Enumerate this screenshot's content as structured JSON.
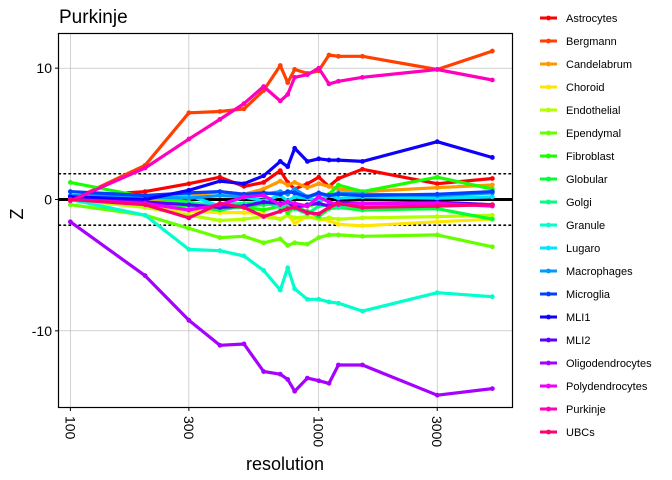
{
  "chart_data": {
    "type": "line",
    "title": "Purkinje",
    "xlabel": "resolution",
    "ylabel": "Z",
    "x_scale": "log",
    "xlim": [
      90,
      6000
    ],
    "ylim": [
      -15.8,
      12.6
    ],
    "x_ticks": [
      {
        "value": 100,
        "label": "100"
      },
      {
        "value": 300,
        "label": "300"
      },
      {
        "value": 1000,
        "label": "1000"
      },
      {
        "value": 3000,
        "label": "3000"
      }
    ],
    "y_ticks": [
      {
        "value": -10,
        "label": "-10"
      },
      {
        "value": 0,
        "label": "0"
      },
      {
        "value": 10,
        "label": "10"
      }
    ],
    "reference_lines": [
      {
        "y": 0,
        "style": "solid"
      },
      {
        "y": 1.96,
        "style": "dotted"
      },
      {
        "y": -1.96,
        "style": "dotted"
      }
    ],
    "grid": true,
    "legend_position": "right",
    "x": [
      100,
      200,
      300,
      400,
      500,
      600,
      700,
      750,
      800,
      900,
      1000,
      1100,
      1200,
      1500,
      3000,
      5000
    ],
    "series": [
      {
        "name": "Astrocytes",
        "color": "#FF0000",
        "values": [
          0.2,
          0.6,
          1.2,
          1.7,
          1.0,
          1.3,
          2.2,
          1.3,
          0.8,
          1.2,
          1.7,
          1.0,
          1.6,
          2.3,
          1.2,
          1.6
        ]
      },
      {
        "name": "Bergmann",
        "color": "#FF4000",
        "values": [
          -0.1,
          2.6,
          6.6,
          6.7,
          6.9,
          8.3,
          10.2,
          8.9,
          9.9,
          9.6,
          9.8,
          11.0,
          10.9,
          10.9,
          9.9,
          11.3
        ]
      },
      {
        "name": "Candelabrum",
        "color": "#FF9900",
        "values": [
          0.0,
          -0.2,
          0.3,
          0.6,
          0.4,
          0.8,
          1.4,
          1.1,
          1.3,
          0.9,
          1.2,
          1.0,
          0.8,
          0.6,
          0.9,
          1.1
        ]
      },
      {
        "name": "Choroid",
        "color": "#FFE500",
        "values": [
          0.0,
          -0.5,
          -0.9,
          -1.0,
          -1.0,
          -1.1,
          -1.5,
          -1.2,
          -1.8,
          -1.3,
          -1.5,
          -1.6,
          -1.9,
          -2.0,
          -1.7,
          -1.5
        ]
      },
      {
        "name": "Endothelial",
        "color": "#B3FF00",
        "values": [
          0.0,
          -0.6,
          -1.2,
          -1.6,
          -1.5,
          -1.3,
          -1.5,
          -1.2,
          -1.4,
          -1.3,
          -1.5,
          -1.4,
          -1.5,
          -1.4,
          -1.3,
          -1.2
        ]
      },
      {
        "name": "Ependymal",
        "color": "#66FF00",
        "values": [
          -0.4,
          -1.2,
          -2.2,
          -2.9,
          -2.8,
          -3.3,
          -3.0,
          -3.5,
          -3.3,
          -3.4,
          -2.9,
          -2.7,
          -2.7,
          -2.8,
          -2.7,
          -3.6
        ]
      },
      {
        "name": "Fibroblast",
        "color": "#1AFF00",
        "values": [
          1.3,
          0.2,
          -0.2,
          -0.6,
          -0.6,
          -0.8,
          -0.5,
          -1.0,
          -0.6,
          -0.5,
          -0.3,
          0.4,
          1.1,
          0.6,
          1.7,
          0.8
        ]
      },
      {
        "name": "Globular",
        "color": "#00FF33",
        "values": [
          0.0,
          -0.3,
          -0.5,
          -0.8,
          -0.5,
          -0.4,
          -0.3,
          -0.8,
          -0.6,
          -0.9,
          -1.3,
          -0.7,
          -0.6,
          -0.8,
          -0.7,
          -1.5
        ]
      },
      {
        "name": "Golgi",
        "color": "#00FF80",
        "values": [
          0.0,
          -0.2,
          -0.3,
          -0.4,
          -0.3,
          -0.2,
          -0.6,
          -0.4,
          -0.7,
          -1.1,
          -0.5,
          -0.4,
          -0.6,
          -0.4,
          -0.3,
          -0.4
        ]
      },
      {
        "name": "Granule",
        "color": "#00FFCC",
        "values": [
          0.0,
          -1.2,
          -3.8,
          -3.9,
          -4.3,
          -5.4,
          -6.9,
          -5.2,
          -6.8,
          -7.6,
          -7.6,
          -7.8,
          -7.9,
          -8.5,
          -7.1,
          -7.4
        ]
      },
      {
        "name": "Lugaro",
        "color": "#00E5FF",
        "values": [
          0.0,
          0.3,
          0.3,
          -0.5,
          0.2,
          -0.1,
          0.3,
          -0.1,
          0.2,
          0.1,
          -0.1,
          0.3,
          0.1,
          0.2,
          0.1,
          0.2
        ]
      },
      {
        "name": "Macrophages",
        "color": "#0099FF",
        "values": [
          0.3,
          0.2,
          0.1,
          0.3,
          0.2,
          0.4,
          0.6,
          0.4,
          0.8,
          0.2,
          0.4,
          0.3,
          0.5,
          0.4,
          0.3,
          0.5
        ]
      },
      {
        "name": "Microglia",
        "color": "#0040FF",
        "values": [
          0.6,
          0.3,
          0.5,
          0.6,
          0.4,
          0.5,
          0.4,
          0.6,
          0.5,
          0.2,
          0.5,
          0.3,
          0.4,
          0.3,
          0.4,
          0.6
        ]
      },
      {
        "name": "MLI1",
        "color": "#0D00FF",
        "values": [
          0.2,
          0.0,
          0.7,
          1.4,
          1.2,
          1.8,
          2.9,
          2.5,
          3.9,
          2.9,
          3.1,
          3.0,
          3.0,
          2.9,
          4.4,
          3.2
        ]
      },
      {
        "name": "MLI2",
        "color": "#5900FF",
        "values": [
          0.0,
          -0.2,
          -0.4,
          -0.6,
          -0.5,
          -0.2,
          -0.3,
          -0.2,
          -0.6,
          -0.4,
          -0.3,
          -0.5,
          -0.2,
          -0.3,
          -0.2,
          -0.4
        ]
      },
      {
        "name": "Oligodendrocytes",
        "color": "#A600FF",
        "values": [
          -1.7,
          -5.8,
          -9.2,
          -11.1,
          -11.0,
          -13.1,
          -13.3,
          -13.7,
          -14.6,
          -13.6,
          -13.8,
          -14.0,
          -12.6,
          -12.6,
          -14.9,
          -14.4
        ]
      },
      {
        "name": "Polydendrocytes",
        "color": "#F200FF",
        "values": [
          0.0,
          -0.3,
          -0.8,
          -0.4,
          0.2,
          0.3,
          -0.4,
          -0.2,
          -0.3,
          -0.5,
          0.2,
          -0.2,
          -0.4,
          -0.3,
          -0.3,
          -0.5
        ]
      },
      {
        "name": "Purkinje",
        "color": "#FF00BF",
        "values": [
          -0.1,
          2.4,
          4.6,
          6.1,
          7.3,
          8.6,
          7.5,
          8.0,
          9.3,
          9.5,
          10.0,
          8.8,
          9.0,
          9.3,
          9.9,
          9.1
        ]
      },
      {
        "name": "UBCs",
        "color": "#FF0073",
        "values": [
          0.0,
          -0.4,
          -1.4,
          -0.3,
          -0.6,
          -1.3,
          -0.9,
          -0.7,
          -0.6,
          -1.0,
          -1.1,
          -0.6,
          -0.3,
          -0.6,
          -0.5,
          -0.4
        ]
      }
    ]
  }
}
